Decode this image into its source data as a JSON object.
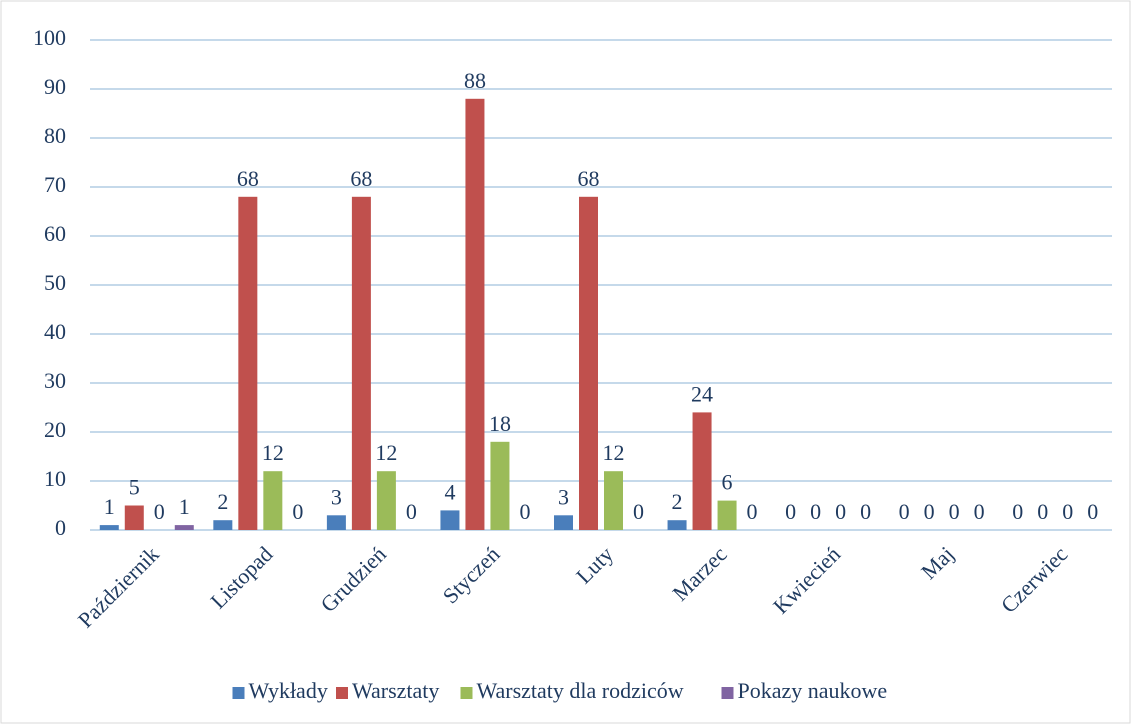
{
  "chart_data": {
    "type": "bar",
    "categories": [
      "Październik",
      "Listopad",
      "Grudzień",
      "Styczeń",
      "Luty",
      "Marzec",
      "Kwiecień",
      "Maj",
      "Czerwiec"
    ],
    "series": [
      {
        "name": "Wykłady",
        "color": "#4a7ebb",
        "values": [
          1,
          2,
          3,
          4,
          3,
          2,
          0,
          0,
          0
        ]
      },
      {
        "name": "Warsztaty",
        "color": "#c0504d",
        "values": [
          5,
          68,
          68,
          88,
          68,
          24,
          0,
          0,
          0
        ]
      },
      {
        "name": "Warsztaty dla rodziców",
        "color": "#9bbb59",
        "values": [
          0,
          12,
          12,
          18,
          12,
          6,
          0,
          0,
          0
        ]
      },
      {
        "name": "Pokazy naukowe",
        "color": "#8064a2",
        "values": [
          1,
          0,
          0,
          0,
          0,
          0,
          0,
          0,
          0
        ]
      }
    ],
    "ylim": [
      0,
      100
    ],
    "yticks": [
      0,
      10,
      20,
      30,
      40,
      50,
      60,
      70,
      80,
      90,
      100
    ],
    "grid": true,
    "legend": "bottom"
  }
}
